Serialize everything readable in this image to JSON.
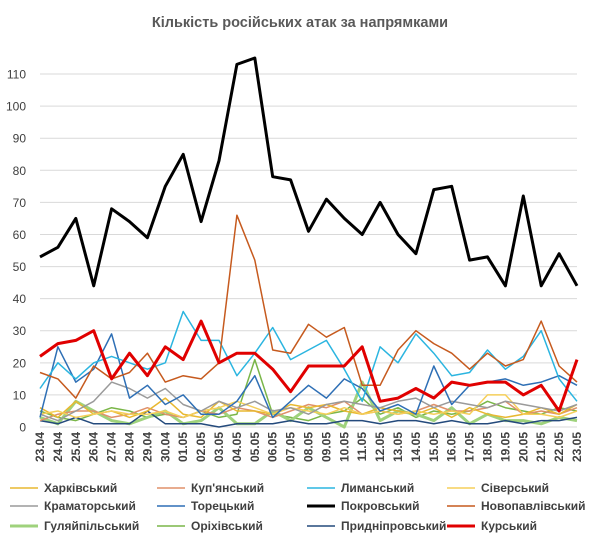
{
  "chart_data": {
    "type": "line",
    "title": "Кількість російських атак за напрямками",
    "xlabel": "",
    "ylabel": "",
    "ylim": [
      0,
      115
    ],
    "yticks": [
      0,
      10,
      20,
      30,
      40,
      50,
      60,
      70,
      80,
      90,
      100,
      110
    ],
    "grid": true,
    "legend": "bottom",
    "categories": [
      "23.04",
      "24.04",
      "25.04",
      "26.04",
      "27.04",
      "28.04",
      "29.04",
      "30.04",
      "01.05",
      "02.05",
      "03.05",
      "04.05",
      "05.05",
      "06.05",
      "07.05",
      "08.05",
      "09.05",
      "10.05",
      "11.05",
      "12.05",
      "13.05",
      "14.05",
      "15.05",
      "16.05",
      "17.05",
      "18.05",
      "19.05",
      "20.05",
      "21.05",
      "22.05",
      "23.05"
    ],
    "series": [
      {
        "name": "Харківський",
        "color": "#e8b830",
        "width": 1.5,
        "values": [
          6,
          3,
          8,
          4,
          5,
          3,
          5,
          9,
          4,
          3,
          8,
          5,
          5,
          4,
          7,
          6,
          7,
          5,
          4,
          6,
          5,
          4,
          6,
          3,
          6,
          4,
          3,
          4,
          6,
          4,
          7
        ]
      },
      {
        "name": "Куп'янський",
        "color": "#e0916a",
        "width": 1.5,
        "values": [
          2,
          4,
          5,
          5,
          3,
          4,
          6,
          4,
          3,
          5,
          4,
          6,
          5,
          3,
          5,
          7,
          6,
          8,
          4,
          5,
          4,
          5,
          7,
          5,
          5,
          6,
          8,
          4,
          5,
          4,
          6
        ]
      },
      {
        "name": "Лиманський",
        "color": "#2bb5e0",
        "width": 1.5,
        "values": [
          12,
          20,
          15,
          20,
          22,
          20,
          18,
          20,
          36,
          27,
          27,
          16,
          23,
          31,
          21,
          24,
          27,
          18,
          8,
          25,
          20,
          29,
          23,
          16,
          17,
          24,
          18,
          22,
          30,
          15,
          8
        ]
      },
      {
        "name": "Сіверський",
        "color": "#f5cf5a",
        "width": 1.5,
        "values": [
          4,
          5,
          3,
          4,
          5,
          4,
          4,
          5,
          3,
          5,
          6,
          8,
          6,
          4,
          6,
          5,
          4,
          6,
          4,
          5,
          4,
          5,
          4,
          5,
          4,
          10,
          10,
          4,
          4,
          3,
          5
        ]
      },
      {
        "name": "Краматорський",
        "color": "#9a9a9a",
        "width": 1.5,
        "values": [
          4,
          2,
          5,
          8,
          14,
          12,
          9,
          12,
          7,
          5,
          8,
          6,
          8,
          5,
          6,
          4,
          7,
          8,
          7,
          6,
          8,
          9,
          6,
          8,
          7,
          6,
          8,
          7,
          6,
          5,
          7
        ]
      },
      {
        "name": "Торецький",
        "color": "#2e6fb5",
        "width": 1.5,
        "values": [
          3,
          25,
          14,
          18,
          29,
          9,
          13,
          7,
          10,
          4,
          4,
          8,
          16,
          3,
          8,
          13,
          9,
          15,
          12,
          5,
          7,
          4,
          19,
          7,
          13,
          14,
          15,
          13,
          14,
          16,
          13
        ]
      },
      {
        "name": "Покровський",
        "color": "#000000",
        "width": 3,
        "values": [
          53,
          56,
          65,
          44,
          68,
          64,
          59,
          75,
          85,
          64,
          83,
          113,
          115,
          78,
          77,
          61,
          71,
          65,
          60,
          70,
          60,
          54,
          74,
          75,
          52,
          53,
          44,
          72,
          44,
          54,
          44
        ]
      },
      {
        "name": "Новопавлівський",
        "color": "#c65a1e",
        "width": 1.5,
        "values": [
          17,
          15,
          9,
          19,
          15,
          17,
          23,
          14,
          16,
          15,
          20,
          66,
          52,
          24,
          23,
          32,
          28,
          31,
          13,
          13,
          24,
          30,
          26,
          23,
          18,
          23,
          19,
          21,
          33,
          19,
          14
        ]
      },
      {
        "name": "Гуляйпільський",
        "color": "#9fd27c",
        "width": 3,
        "values": [
          3,
          1,
          8,
          5,
          2,
          1,
          3,
          5,
          1,
          2,
          6,
          1,
          1,
          5,
          2,
          6,
          3,
          0,
          14,
          2,
          5,
          4,
          2,
          6,
          1,
          4,
          2,
          2,
          1,
          3,
          2
        ]
      },
      {
        "name": "Оріхівський",
        "color": "#7ab648",
        "width": 1.5,
        "values": [
          5,
          3,
          2,
          4,
          6,
          5,
          3,
          4,
          3,
          5,
          3,
          4,
          21,
          4,
          3,
          2,
          4,
          5,
          9,
          4,
          6,
          3,
          5,
          4,
          5,
          8,
          6,
          5,
          4,
          6,
          5
        ]
      },
      {
        "name": "Придніпровський",
        "color": "#244a7c",
        "width": 1.5,
        "values": [
          2,
          1,
          3,
          1,
          1,
          1,
          5,
          1,
          1,
          1,
          0,
          1,
          1,
          1,
          2,
          1,
          1,
          2,
          2,
          1,
          2,
          2,
          1,
          2,
          1,
          1,
          2,
          1,
          2,
          2,
          3
        ]
      },
      {
        "name": "Курський",
        "color": "#e00000",
        "width": 3,
        "values": [
          22,
          26,
          27,
          30,
          15,
          23,
          16,
          25,
          21,
          33,
          20,
          23,
          23,
          18,
          11,
          19,
          19,
          19,
          25,
          8,
          9,
          12,
          9,
          14,
          13,
          14,
          14,
          10,
          13,
          5,
          21
        ]
      }
    ]
  }
}
